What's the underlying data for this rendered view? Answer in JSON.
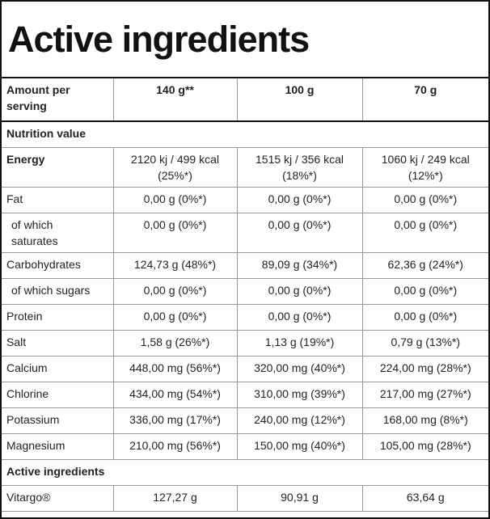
{
  "header": {
    "title": "Active ingredients"
  },
  "table": {
    "columns": [
      "Amount per\nserving",
      "140 g**",
      "100 g",
      "70 g"
    ],
    "sections": [
      {
        "title": "Nutrition value",
        "rows": [
          [
            "Energy",
            "2120 kj / 499 kcal\n(25%*)",
            "1515 kj / 356 kcal\n(18%*)",
            "1060 kj / 249 kcal\n(12%*)"
          ],
          [
            "Fat",
            "0,00 g (0%*)",
            "0,00 g (0%*)",
            "0,00 g (0%*)"
          ],
          [
            "of which\nsaturates",
            "0,00 g (0%*)",
            "0,00 g (0%*)",
            "0,00 g (0%*)"
          ],
          [
            "Carbohydrates",
            "124,73 g (48%*)",
            "89,09 g (34%*)",
            "62,36 g (24%*)"
          ],
          [
            "of which sugars",
            "0,00 g (0%*)",
            "0,00 g (0%*)",
            "0,00 g (0%*)"
          ],
          [
            "Protein",
            "0,00 g (0%*)",
            "0,00 g (0%*)",
            "0,00 g (0%*)"
          ],
          [
            "Salt",
            "1,58 g (26%*)",
            "1,13 g (19%*)",
            "0,79 g (13%*)"
          ],
          [
            "Calcium",
            "448,00 mg (56%*)",
            "320,00 mg (40%*)",
            "224,00 mg (28%*)"
          ],
          [
            "Chlorine",
            "434,00 mg (54%*)",
            "310,00 mg (39%*)",
            "217,00 mg (27%*)"
          ],
          [
            "Potassium",
            "336,00 mg (17%*)",
            "240,00 mg (12%*)",
            "168,00 mg (8%*)"
          ],
          [
            "Magnesium",
            "210,00 mg (56%*)",
            "150,00 mg (40%*)",
            "105,00 mg (28%*)"
          ]
        ]
      },
      {
        "title": "Active ingredients",
        "rows": [
          [
            "Vitargo®",
            "127,27 g",
            "90,91 g",
            "63,64 g"
          ]
        ]
      }
    ]
  }
}
